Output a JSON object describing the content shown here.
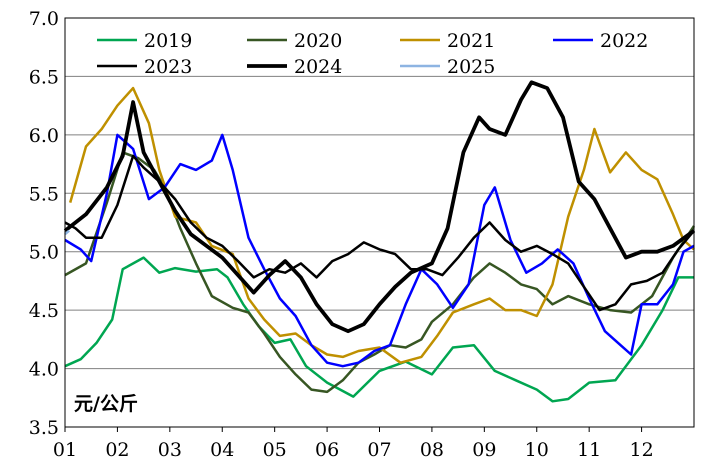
{
  "chart_data": {
    "type": "line",
    "unit_label": "元/公斤",
    "x_categories": [
      "01",
      "02",
      "03",
      "04",
      "05",
      "06",
      "07",
      "08",
      "09",
      "10",
      "11",
      "12"
    ],
    "ylim": [
      3.5,
      7.0
    ],
    "y_ticks": [
      "3.5",
      "4.0",
      "4.5",
      "5.0",
      "5.5",
      "6.0",
      "6.5",
      "7.0"
    ],
    "grid": "horizontal",
    "legend_placement": "top",
    "series": [
      {
        "name": "2019",
        "color": "#00a651",
        "width": 2.5,
        "values": [
          [
            1.0,
            4.02
          ],
          [
            1.3,
            4.08
          ],
          [
            1.6,
            4.22
          ],
          [
            1.9,
            4.42
          ],
          [
            2.1,
            4.85
          ],
          [
            2.5,
            4.95
          ],
          [
            2.8,
            4.82
          ],
          [
            3.1,
            4.86
          ],
          [
            3.5,
            4.83
          ],
          [
            3.9,
            4.85
          ],
          [
            4.1,
            4.78
          ],
          [
            4.4,
            4.55
          ],
          [
            4.7,
            4.36
          ],
          [
            5.0,
            4.22
          ],
          [
            5.3,
            4.25
          ],
          [
            5.6,
            4.02
          ],
          [
            6.0,
            3.88
          ],
          [
            6.5,
            3.76
          ],
          [
            7.0,
            3.98
          ],
          [
            7.5,
            4.06
          ],
          [
            8.0,
            3.95
          ],
          [
            8.4,
            4.18
          ],
          [
            8.8,
            4.2
          ],
          [
            9.2,
            3.98
          ],
          [
            9.6,
            3.9
          ],
          [
            10.0,
            3.82
          ],
          [
            10.3,
            3.72
          ],
          [
            10.6,
            3.74
          ],
          [
            11.0,
            3.88
          ],
          [
            11.5,
            3.9
          ],
          [
            12.0,
            4.2
          ],
          [
            12.4,
            4.5
          ],
          [
            12.7,
            4.78
          ],
          [
            13.0,
            4.78
          ]
        ]
      },
      {
        "name": "2020",
        "color": "#375623",
        "width": 2.5,
        "values": [
          [
            1.0,
            4.8
          ],
          [
            1.4,
            4.9
          ],
          [
            1.8,
            5.42
          ],
          [
            2.1,
            5.85
          ],
          [
            2.4,
            5.8
          ],
          [
            2.7,
            5.7
          ],
          [
            2.9,
            5.55
          ],
          [
            3.2,
            5.2
          ],
          [
            3.5,
            4.9
          ],
          [
            3.8,
            4.62
          ],
          [
            4.2,
            4.52
          ],
          [
            4.5,
            4.48
          ],
          [
            4.8,
            4.3
          ],
          [
            5.1,
            4.1
          ],
          [
            5.4,
            3.95
          ],
          [
            5.7,
            3.82
          ],
          [
            6.0,
            3.8
          ],
          [
            6.3,
            3.9
          ],
          [
            6.6,
            4.05
          ],
          [
            6.9,
            4.12
          ],
          [
            7.2,
            4.2
          ],
          [
            7.5,
            4.18
          ],
          [
            7.8,
            4.25
          ],
          [
            8.0,
            4.4
          ],
          [
            8.4,
            4.55
          ],
          [
            8.8,
            4.78
          ],
          [
            9.1,
            4.9
          ],
          [
            9.4,
            4.82
          ],
          [
            9.7,
            4.72
          ],
          [
            10.0,
            4.68
          ],
          [
            10.3,
            4.55
          ],
          [
            10.6,
            4.62
          ],
          [
            11.0,
            4.55
          ],
          [
            11.4,
            4.5
          ],
          [
            11.8,
            4.48
          ],
          [
            12.2,
            4.62
          ],
          [
            12.6,
            4.95
          ],
          [
            13.0,
            5.22
          ]
        ]
      },
      {
        "name": "2021",
        "color": "#bf9000",
        "width": 2.5,
        "values": [
          [
            1.1,
            5.42
          ],
          [
            1.4,
            5.9
          ],
          [
            1.7,
            6.05
          ],
          [
            2.0,
            6.25
          ],
          [
            2.3,
            6.4
          ],
          [
            2.6,
            6.1
          ],
          [
            2.8,
            5.7
          ],
          [
            3.1,
            5.3
          ],
          [
            3.5,
            5.25
          ],
          [
            3.8,
            5.05
          ],
          [
            4.2,
            4.98
          ],
          [
            4.5,
            4.6
          ],
          [
            4.8,
            4.42
          ],
          [
            5.1,
            4.28
          ],
          [
            5.4,
            4.3
          ],
          [
            5.7,
            4.2
          ],
          [
            6.0,
            4.12
          ],
          [
            6.3,
            4.1
          ],
          [
            6.6,
            4.15
          ],
          [
            7.0,
            4.18
          ],
          [
            7.4,
            4.05
          ],
          [
            7.8,
            4.1
          ],
          [
            8.1,
            4.28
          ],
          [
            8.4,
            4.48
          ],
          [
            8.8,
            4.55
          ],
          [
            9.1,
            4.6
          ],
          [
            9.4,
            4.5
          ],
          [
            9.7,
            4.5
          ],
          [
            10.0,
            4.45
          ],
          [
            10.3,
            4.72
          ],
          [
            10.6,
            5.3
          ],
          [
            10.9,
            5.7
          ],
          [
            11.1,
            6.05
          ],
          [
            11.4,
            5.68
          ],
          [
            11.7,
            5.85
          ],
          [
            12.0,
            5.7
          ],
          [
            12.3,
            5.62
          ],
          [
            12.6,
            5.32
          ],
          [
            12.8,
            5.1
          ],
          [
            13.0,
            5.02
          ]
        ]
      },
      {
        "name": "2022",
        "color": "#0000ff",
        "width": 2.5,
        "values": [
          [
            1.0,
            5.1
          ],
          [
            1.3,
            5.02
          ],
          [
            1.5,
            4.92
          ],
          [
            1.8,
            5.5
          ],
          [
            2.0,
            6.0
          ],
          [
            2.3,
            5.88
          ],
          [
            2.6,
            5.45
          ],
          [
            2.9,
            5.55
          ],
          [
            3.2,
            5.75
          ],
          [
            3.5,
            5.7
          ],
          [
            3.8,
            5.78
          ],
          [
            4.0,
            6.0
          ],
          [
            4.2,
            5.7
          ],
          [
            4.5,
            5.12
          ],
          [
            4.8,
            4.85
          ],
          [
            5.1,
            4.6
          ],
          [
            5.4,
            4.45
          ],
          [
            5.7,
            4.2
          ],
          [
            6.0,
            4.05
          ],
          [
            6.3,
            4.02
          ],
          [
            6.6,
            4.05
          ],
          [
            6.9,
            4.15
          ],
          [
            7.2,
            4.2
          ],
          [
            7.5,
            4.55
          ],
          [
            7.8,
            4.85
          ],
          [
            8.1,
            4.72
          ],
          [
            8.4,
            4.52
          ],
          [
            8.7,
            4.72
          ],
          [
            9.0,
            5.4
          ],
          [
            9.2,
            5.55
          ],
          [
            9.5,
            5.1
          ],
          [
            9.8,
            4.82
          ],
          [
            10.1,
            4.9
          ],
          [
            10.4,
            5.02
          ],
          [
            10.7,
            4.9
          ],
          [
            11.0,
            4.6
          ],
          [
            11.3,
            4.32
          ],
          [
            11.6,
            4.2
          ],
          [
            11.8,
            4.12
          ],
          [
            12.0,
            4.55
          ],
          [
            12.3,
            4.55
          ],
          [
            12.6,
            4.72
          ],
          [
            12.8,
            5.0
          ],
          [
            13.0,
            5.05
          ]
        ]
      },
      {
        "name": "2023",
        "color": "#000000",
        "width": 2.5,
        "values": [
          [
            1.0,
            5.25
          ],
          [
            1.2,
            5.2
          ],
          [
            1.4,
            5.12
          ],
          [
            1.7,
            5.12
          ],
          [
            2.0,
            5.4
          ],
          [
            2.3,
            5.82
          ],
          [
            2.5,
            5.72
          ],
          [
            2.8,
            5.6
          ],
          [
            3.1,
            5.45
          ],
          [
            3.4,
            5.25
          ],
          [
            3.7,
            5.12
          ],
          [
            4.0,
            5.05
          ],
          [
            4.3,
            4.92
          ],
          [
            4.6,
            4.78
          ],
          [
            4.9,
            4.85
          ],
          [
            5.2,
            4.82
          ],
          [
            5.5,
            4.9
          ],
          [
            5.8,
            4.78
          ],
          [
            6.1,
            4.92
          ],
          [
            6.4,
            4.98
          ],
          [
            6.7,
            5.08
          ],
          [
            7.0,
            5.02
          ],
          [
            7.3,
            4.98
          ],
          [
            7.6,
            4.85
          ],
          [
            7.9,
            4.85
          ],
          [
            8.2,
            4.8
          ],
          [
            8.5,
            4.95
          ],
          [
            8.8,
            5.12
          ],
          [
            9.1,
            5.25
          ],
          [
            9.4,
            5.1
          ],
          [
            9.7,
            5.0
          ],
          [
            10.0,
            5.05
          ],
          [
            10.3,
            4.98
          ],
          [
            10.6,
            4.9
          ],
          [
            10.9,
            4.7
          ],
          [
            11.2,
            4.5
          ],
          [
            11.5,
            4.55
          ],
          [
            11.8,
            4.72
          ],
          [
            12.1,
            4.75
          ],
          [
            12.4,
            4.82
          ],
          [
            12.7,
            5.02
          ],
          [
            13.0,
            5.18
          ]
        ]
      },
      {
        "name": "2024",
        "color": "#000000",
        "width": 3.8,
        "values": [
          [
            1.0,
            5.18
          ],
          [
            1.4,
            5.32
          ],
          [
            1.8,
            5.55
          ],
          [
            2.1,
            5.82
          ],
          [
            2.3,
            6.28
          ],
          [
            2.5,
            5.85
          ],
          [
            2.8,
            5.6
          ],
          [
            3.1,
            5.35
          ],
          [
            3.4,
            5.15
          ],
          [
            3.7,
            5.05
          ],
          [
            4.0,
            4.95
          ],
          [
            4.3,
            4.8
          ],
          [
            4.6,
            4.65
          ],
          [
            4.9,
            4.8
          ],
          [
            5.2,
            4.92
          ],
          [
            5.5,
            4.78
          ],
          [
            5.8,
            4.55
          ],
          [
            6.1,
            4.38
          ],
          [
            6.4,
            4.32
          ],
          [
            6.7,
            4.38
          ],
          [
            7.0,
            4.55
          ],
          [
            7.3,
            4.7
          ],
          [
            7.6,
            4.82
          ],
          [
            8.0,
            4.9
          ],
          [
            8.3,
            5.2
          ],
          [
            8.6,
            5.85
          ],
          [
            8.9,
            6.15
          ],
          [
            9.1,
            6.05
          ],
          [
            9.4,
            6.0
          ],
          [
            9.7,
            6.3
          ],
          [
            9.9,
            6.45
          ],
          [
            10.2,
            6.4
          ],
          [
            10.5,
            6.15
          ],
          [
            10.8,
            5.6
          ],
          [
            11.1,
            5.45
          ],
          [
            11.4,
            5.2
          ],
          [
            11.7,
            4.95
          ],
          [
            12.0,
            5.0
          ],
          [
            12.3,
            5.0
          ],
          [
            12.6,
            5.05
          ],
          [
            13.0,
            5.18
          ]
        ]
      },
      {
        "name": "2025",
        "color": "#8db4e2",
        "width": 2.5,
        "values": [
          [
            1.0,
            5.15
          ],
          [
            1.08,
            5.18
          ]
        ]
      }
    ]
  }
}
